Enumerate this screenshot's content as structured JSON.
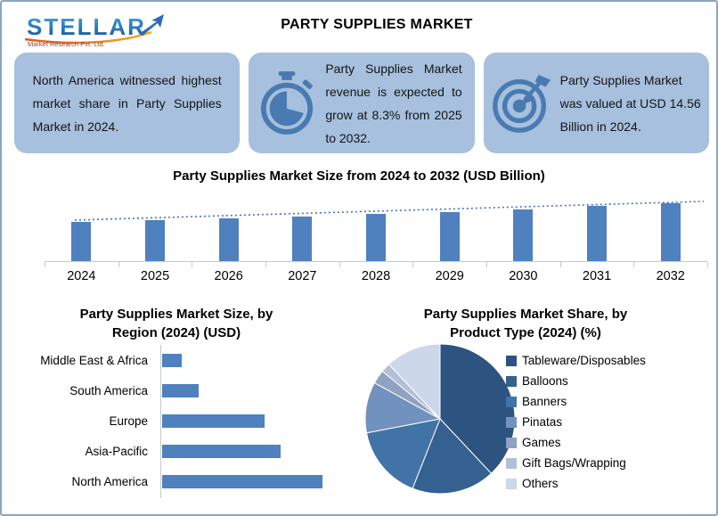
{
  "header": {
    "logo_name": "STELLAR",
    "logo_tagline": "Market Research Pvt. Ltd.",
    "title": "PARTY SUPPLIES MARKET"
  },
  "highlights": [
    {
      "icon": null,
      "text": "North America witnessed highest market share in Party Supplies Market in 2024."
    },
    {
      "icon": "stopwatch-icon",
      "text": "Party Supplies Market revenue is expected to grow at 8.3% from 2025 to 2032."
    },
    {
      "icon": "target-dart-icon",
      "text": "Party Supplies Market was valued at USD 14.56 Billion in 2024."
    }
  ],
  "colors": {
    "box_bg": "#A6C0DD",
    "icon_blue": "#4A7AB2",
    "bar_blue": "#4E81BE",
    "trendline_blue": "#4472C4",
    "axis_gray": "#C9C9C9",
    "frame_border": "#8AA5C4"
  },
  "chart_data": [
    {
      "id": "market_size_by_year",
      "type": "bar",
      "title": "Party Supplies Market Size from 2024 to 2032 (USD Billion)",
      "categories": [
        "2024",
        "2025",
        "2026",
        "2027",
        "2028",
        "2029",
        "2030",
        "2031",
        "2032"
      ],
      "values": [
        14.56,
        15.77,
        17.08,
        18.49,
        20.03,
        21.69,
        23.49,
        25.44,
        27.55
      ],
      "unit": "USD Billion",
      "value_source": "2024 labeled 14.56; later years estimated from stated 8.3% CAGR",
      "trendline": true,
      "axis_labels_shown": false,
      "grid": false
    },
    {
      "id": "market_size_by_region",
      "type": "bar",
      "orientation": "horizontal",
      "title": "Party Supplies Market Size, by Region (2024) (USD)",
      "categories": [
        "Middle East & Africa",
        "South America",
        "Europe",
        "Asia-Pacific",
        "North America"
      ],
      "relative_values": [
        0.12,
        0.23,
        0.64,
        0.74,
        1.0
      ],
      "value_note": "no numeric axis shown; lengths estimated relative to North America = 1.0",
      "grid": false
    },
    {
      "id": "market_share_by_product_type",
      "type": "pie",
      "title": "Party Supplies Market Share, by Product Type (2024) (%)",
      "categories": [
        "Tableware/Disposables",
        "Balloons",
        "Banners",
        "Pinatas",
        "Games",
        "Gift Bags/Wrapping",
        "Others"
      ],
      "values_pct": [
        38,
        18,
        16,
        11,
        3,
        2,
        12
      ],
      "value_note": "percentages estimated from slice angles; no data labels shown",
      "palette": [
        "#2D5380",
        "#34618F",
        "#4273A6",
        "#7191BE",
        "#8FA2C2",
        "#B3BFD8",
        "#CDD7EA"
      ],
      "legend_position": "right"
    }
  ]
}
